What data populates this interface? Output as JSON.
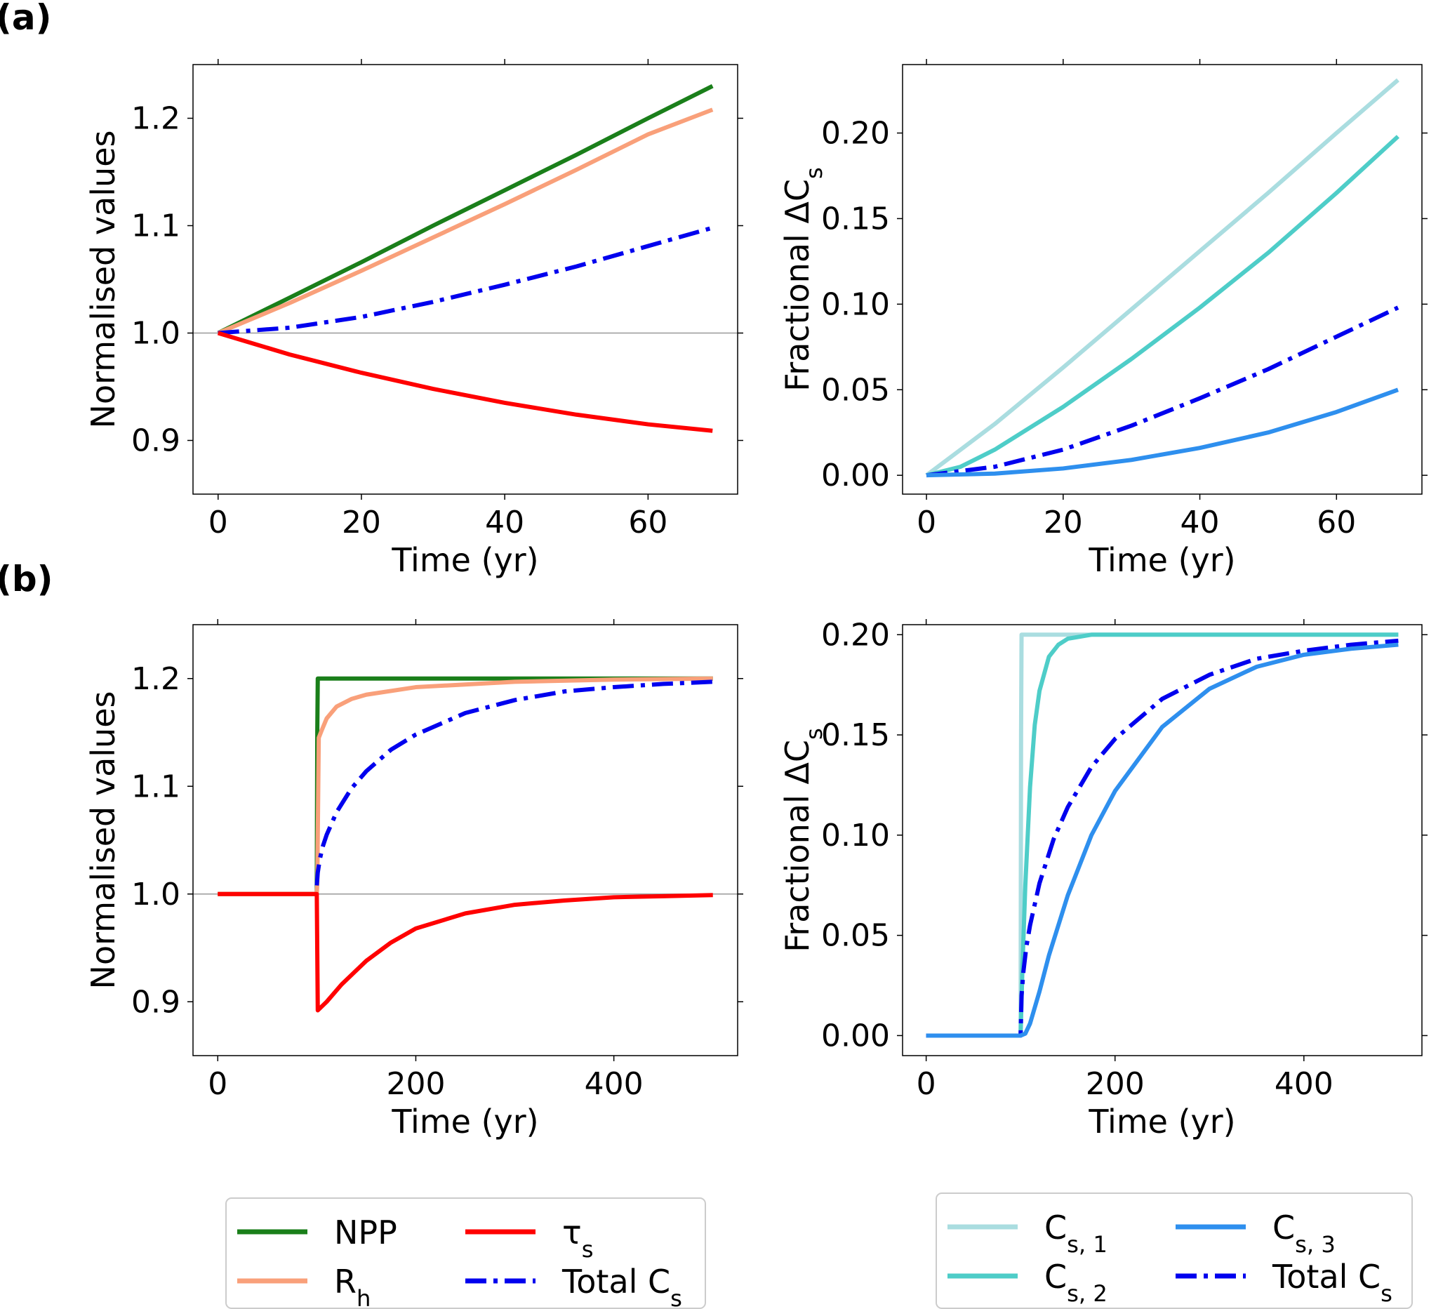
{
  "panel_labels": [
    "(a)",
    "(b)"
  ],
  "colors": {
    "npp": "#1a7f1a",
    "rh": "#f9a07a",
    "tau": "#ff0000",
    "total": "#0000ee",
    "cs1": "#aadde0",
    "cs2": "#4ecdc8",
    "cs3": "#2e8fee"
  },
  "legend_left": [
    {
      "key": "npp",
      "label": "NPP",
      "style": "solid"
    },
    {
      "key": "rh",
      "label": "R",
      "sub": "h",
      "style": "solid"
    },
    {
      "key": "tau",
      "label": "τ",
      "sub": "s",
      "style": "solid"
    },
    {
      "key": "total",
      "label": "Total C",
      "sub": "s",
      "style": "dashdot"
    }
  ],
  "legend_right": [
    {
      "key": "cs1",
      "label": "C",
      "sub": "s, 1",
      "style": "solid"
    },
    {
      "key": "cs2",
      "label": "C",
      "sub": "s, 2",
      "style": "solid"
    },
    {
      "key": "cs3",
      "label": "C",
      "sub": "s, 3",
      "style": "solid"
    },
    {
      "key": "total",
      "label": "Total C",
      "sub": "s",
      "style": "dashdot"
    }
  ],
  "chart_data": [
    {
      "id": "a_left",
      "type": "line",
      "xlabel": "Time (yr)",
      "ylabel": "Normalised values",
      "xlim": [
        -3.5,
        72.5
      ],
      "ylim": [
        0.85,
        1.25
      ],
      "xticks": [
        0,
        20,
        40,
        60
      ],
      "yticks": [
        0.9,
        1.0,
        1.1,
        1.2
      ],
      "ytick_labels": [
        "0.9",
        "1.0",
        "1.1",
        "1.2"
      ],
      "hline": 1.0,
      "series": [
        {
          "name": "NPP",
          "key": "npp",
          "style": "solid",
          "x": [
            0,
            10,
            20,
            30,
            40,
            50,
            60,
            69
          ],
          "y": [
            1.0,
            1.033,
            1.066,
            1.1,
            1.133,
            1.166,
            1.2,
            1.23
          ]
        },
        {
          "name": "Rh",
          "key": "rh",
          "style": "solid",
          "x": [
            0,
            10,
            20,
            30,
            40,
            50,
            60,
            69
          ],
          "y": [
            1.0,
            1.028,
            1.058,
            1.089,
            1.12,
            1.152,
            1.185,
            1.208
          ]
        },
        {
          "name": "Total Cs",
          "key": "total",
          "style": "dashdot",
          "x": [
            0,
            10,
            20,
            30,
            40,
            50,
            60,
            69
          ],
          "y": [
            1.0,
            1.005,
            1.015,
            1.029,
            1.045,
            1.062,
            1.081,
            1.098
          ]
        },
        {
          "name": "tau_s",
          "key": "tau",
          "style": "solid",
          "x": [
            0,
            10,
            20,
            30,
            40,
            50,
            60,
            69
          ],
          "y": [
            1.0,
            0.98,
            0.963,
            0.948,
            0.935,
            0.924,
            0.915,
            0.909
          ]
        }
      ]
    },
    {
      "id": "a_right",
      "type": "line",
      "xlabel": "Time (yr)",
      "ylabel": "Fractional ΔC",
      "ylabel_sub": "s",
      "xlim": [
        -3.5,
        72.5
      ],
      "ylim": [
        -0.011,
        0.24
      ],
      "xticks": [
        0,
        20,
        40,
        60
      ],
      "yticks": [
        0.0,
        0.05,
        0.1,
        0.15,
        0.2
      ],
      "ytick_labels": [
        "0.00",
        "0.05",
        "0.10",
        "0.15",
        "0.20"
      ],
      "series": [
        {
          "name": "Cs,1",
          "key": "cs1",
          "style": "solid",
          "x": [
            0,
            5,
            10,
            20,
            30,
            40,
            50,
            60,
            69
          ],
          "y": [
            0.0,
            0.015,
            0.03,
            0.063,
            0.097,
            0.131,
            0.165,
            0.2,
            0.231
          ]
        },
        {
          "name": "Cs,2",
          "key": "cs2",
          "style": "solid",
          "x": [
            0,
            5,
            10,
            20,
            30,
            40,
            50,
            60,
            69
          ],
          "y": [
            0.0,
            0.005,
            0.015,
            0.04,
            0.068,
            0.098,
            0.13,
            0.165,
            0.198
          ]
        },
        {
          "name": "Total Cs",
          "key": "total",
          "style": "dashdot",
          "x": [
            0,
            10,
            20,
            30,
            40,
            50,
            60,
            69
          ],
          "y": [
            0.0,
            0.005,
            0.015,
            0.029,
            0.045,
            0.062,
            0.081,
            0.098
          ]
        },
        {
          "name": "Cs,3",
          "key": "cs3",
          "style": "solid",
          "x": [
            0,
            10,
            20,
            30,
            40,
            50,
            60,
            69
          ],
          "y": [
            0.0,
            0.001,
            0.004,
            0.009,
            0.016,
            0.025,
            0.037,
            0.05
          ]
        }
      ]
    },
    {
      "id": "b_left",
      "type": "line",
      "xlabel": "Time (yr)",
      "ylabel": "Normalised values",
      "xlim": [
        -25,
        525
      ],
      "ylim": [
        0.85,
        1.25
      ],
      "xticks": [
        0,
        200,
        400
      ],
      "yticks": [
        0.9,
        1.0,
        1.1,
        1.2
      ],
      "ytick_labels": [
        "0.9",
        "1.0",
        "1.1",
        "1.2"
      ],
      "hline": 1.0,
      "series": [
        {
          "name": "NPP",
          "key": "npp",
          "style": "solid",
          "x": [
            0,
            100,
            100.5,
            101,
            500
          ],
          "y": [
            1.0,
            1.0,
            1.15,
            1.2,
            1.2
          ]
        },
        {
          "name": "Rh",
          "key": "rh",
          "style": "solid",
          "x": [
            0,
            100,
            100.5,
            102,
            105,
            110,
            120,
            135,
            150,
            200,
            300,
            400,
            500
          ],
          "y": [
            1.0,
            1.0,
            1.01,
            1.145,
            1.152,
            1.163,
            1.174,
            1.181,
            1.185,
            1.192,
            1.197,
            1.199,
            1.2
          ]
        },
        {
          "name": "Total Cs",
          "key": "total",
          "style": "dashdot",
          "x": [
            100,
            101,
            103,
            106,
            110,
            120,
            135,
            150,
            175,
            200,
            250,
            300,
            350,
            400,
            450,
            500
          ],
          "y": [
            1.008,
            1.02,
            1.032,
            1.044,
            1.055,
            1.076,
            1.098,
            1.114,
            1.134,
            1.148,
            1.168,
            1.18,
            1.188,
            1.192,
            1.195,
            1.197
          ]
        },
        {
          "name": "tau_s",
          "key": "tau",
          "style": "solid",
          "x": [
            0,
            100,
            101,
            110,
            125,
            150,
            175,
            200,
            250,
            300,
            350,
            400,
            450,
            500
          ],
          "y": [
            1.0,
            1.0,
            0.892,
            0.9,
            0.916,
            0.938,
            0.955,
            0.968,
            0.982,
            0.99,
            0.994,
            0.997,
            0.998,
            0.999
          ]
        }
      ]
    },
    {
      "id": "b_right",
      "type": "line",
      "xlabel": "Time (yr)",
      "ylabel": "Fractional ΔC",
      "ylabel_sub": "s",
      "xlim": [
        -25,
        525
      ],
      "ylim": [
        -0.01,
        0.205
      ],
      "xticks": [
        0,
        200,
        400
      ],
      "yticks": [
        0.0,
        0.05,
        0.1,
        0.15,
        0.2
      ],
      "ytick_labels": [
        "0.00",
        "0.05",
        "0.10",
        "0.15",
        "0.20"
      ],
      "series": [
        {
          "name": "Cs,1",
          "key": "cs1",
          "style": "solid",
          "x": [
            0,
            100,
            100.5,
            101,
            500
          ],
          "y": [
            0.0,
            0.0,
            0.15,
            0.2,
            0.2
          ]
        },
        {
          "name": "Cs,2",
          "key": "cs2",
          "style": "solid",
          "x": [
            0,
            100,
            102,
            105,
            110,
            115,
            120,
            130,
            140,
            150,
            175,
            200,
            500
          ],
          "y": [
            0.0,
            0.0,
            0.035,
            0.075,
            0.124,
            0.155,
            0.172,
            0.189,
            0.195,
            0.198,
            0.2,
            0.2,
            0.2
          ]
        },
        {
          "name": "Total Cs",
          "key": "total",
          "style": "dashdot",
          "x": [
            0,
            100,
            101,
            103,
            106,
            110,
            120,
            135,
            150,
            175,
            200,
            250,
            300,
            350,
            400,
            450,
            500
          ],
          "y": [
            0.0,
            0.0,
            0.02,
            0.032,
            0.044,
            0.055,
            0.076,
            0.098,
            0.114,
            0.134,
            0.148,
            0.168,
            0.18,
            0.188,
            0.192,
            0.195,
            0.197
          ]
        },
        {
          "name": "Cs,3",
          "key": "cs3",
          "style": "solid",
          "x": [
            0,
            100,
            105,
            110,
            120,
            130,
            150,
            175,
            200,
            250,
            300,
            350,
            400,
            450,
            500
          ],
          "y": [
            0.0,
            0.0,
            0.001,
            0.006,
            0.022,
            0.04,
            0.07,
            0.1,
            0.122,
            0.154,
            0.173,
            0.184,
            0.19,
            0.193,
            0.195
          ]
        }
      ]
    }
  ]
}
